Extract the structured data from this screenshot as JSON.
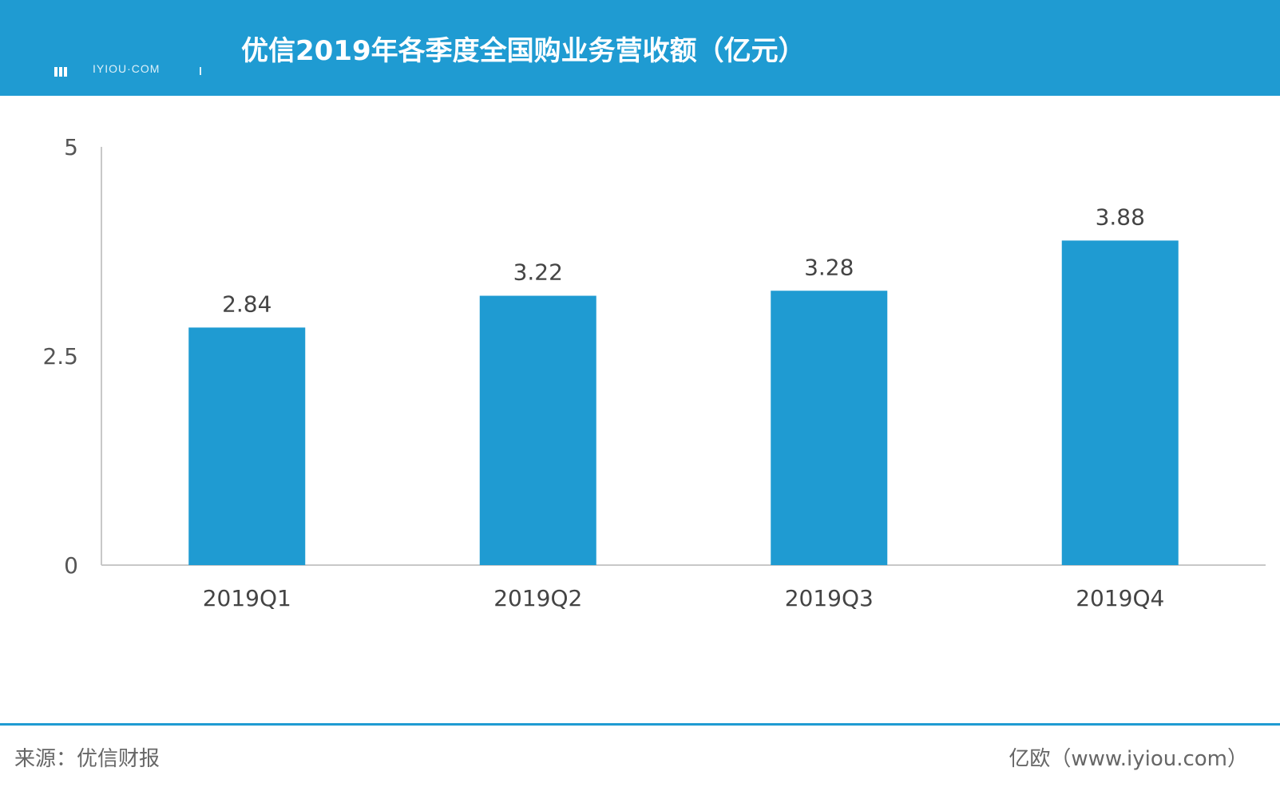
{
  "header": {
    "title": "优信2019年各季度全国购业务营收额（亿元）",
    "logo_text": "IYIOU·COM"
  },
  "colors": {
    "bar": "#1f9bd2",
    "header_bg": "#1f9bd2",
    "axis": "#c8c8c8"
  },
  "chart_data": {
    "type": "bar",
    "categories": [
      "2019Q1",
      "2019Q2",
      "2019Q3",
      "2019Q4"
    ],
    "values": [
      2.84,
      3.22,
      3.28,
      3.88
    ],
    "data_labels": [
      "2.84",
      "3.22",
      "3.28",
      "3.88"
    ],
    "ylim": [
      0,
      5
    ],
    "yticks": [
      0,
      2.5,
      5
    ],
    "ytick_labels": [
      "0",
      "2.5",
      "5"
    ],
    "grid": false,
    "legend": "none"
  },
  "footer": {
    "source": "来源：优信财报",
    "brand": "亿欧（www.iyiou.com）"
  }
}
